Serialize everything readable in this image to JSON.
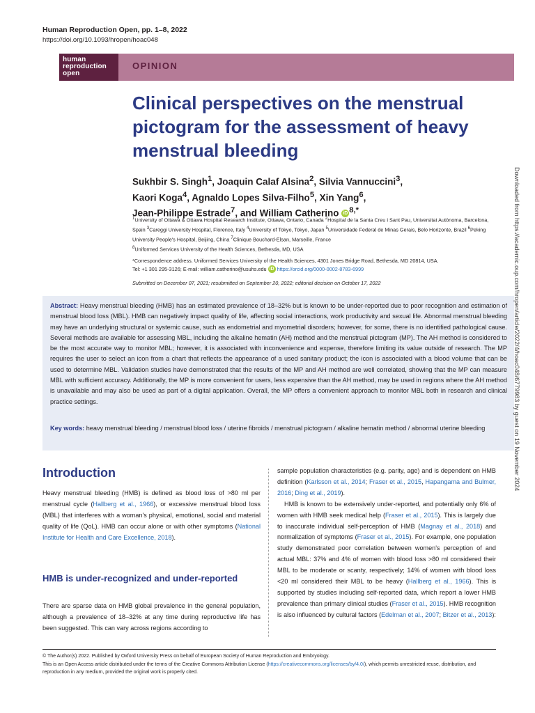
{
  "header": {
    "journal": "Human Reproduction Open, pp. 1–8, 2022",
    "doi": "https://doi.org/10.1093/hropen/hoac048"
  },
  "logo": {
    "line1": "human",
    "line2": "reproduction",
    "line3": "open"
  },
  "colors": {
    "accent": "#2c3a84",
    "banner": "#b57b97",
    "logo_bg": "#5e2140",
    "abstract_bg": "#e8ecf5",
    "orcid": "#a6ce39"
  },
  "banner_label": "OPINION",
  "title": "Clinical perspectives on the menstrual pictogram for the assessment of heavy menstrual bleeding",
  "authors": [
    {
      "name": "Sukhbir S. Singh",
      "sup": "1"
    },
    {
      "name": "Joaquin Calaf Alsina",
      "sup": "2"
    },
    {
      "name": "Silvia Vannuccini",
      "sup": "3"
    },
    {
      "name": "Kaori Koga",
      "sup": "4"
    },
    {
      "name": "Agnaldo Lopes Silva-Filho",
      "sup": "5"
    },
    {
      "name": "Xin Yang",
      "sup": "6"
    },
    {
      "name": "Jean-Philippe Estrade",
      "sup": "7"
    },
    {
      "name": "William Catherino",
      "sup": "8,*"
    }
  ],
  "affiliations": [
    {
      "sup": "1",
      "text": "University of Ottawa & Ottawa Hospital Research Institute, Ottawa, Ontario, Canada"
    },
    {
      "sup": "2",
      "text": "Hospital de la Santa Creu i Sant Pau, Universitat Autònoma, Barcelona, Spain"
    },
    {
      "sup": "3",
      "text": "Careggi University Hospital, Florence, Italy"
    },
    {
      "sup": "4",
      "text": "University of Tokyo, Tokyo, Japan"
    },
    {
      "sup": "5",
      "text": "Universidade Federal de Minas Gerais, Belo Horizonte, Brazil"
    },
    {
      "sup": "6",
      "text": "Peking University People's Hospital, Beijing, China"
    },
    {
      "sup": "7",
      "text": "Clinique Bouchard-Elsan, Marseille, France"
    },
    {
      "sup": "8",
      "text": "Uniformed Services University of the Health Sciences, Bethesda, MD, USA"
    }
  ],
  "correspondence": {
    "address": "*Correspondence address. Uniformed Services University of the Health Sciences, 4301 Jones Bridge Road, Bethesda, MD 20814, USA.",
    "contact": "Tel: +1 301 295-3126; E-mail: william.catherino@usuhs.edu",
    "orcid_url": "https://orcid.org/0000-0002-8783-6999"
  },
  "submitted": "Submitted on December 07, 2021; resubmitted on September 20, 2022; editorial decision on October 17, 2022",
  "abstract": {
    "label": "Abstract:",
    "text": "Heavy menstrual bleeding (HMB) has an estimated prevalence of 18–32% but is known to be under-reported due to poor recognition and estimation of menstrual blood loss (MBL). HMB can negatively impact quality of life, affecting social interactions, work productivity and sexual life. Abnormal menstrual bleeding may have an underlying structural or systemic cause, such as endometrial and myometrial disorders; however, for some, there is no identified pathological cause. Several methods are available for assessing MBL, including the alkaline hematin (AH) method and the menstrual pictogram (MP). The AH method is considered to be the most accurate way to monitor MBL; however, it is associated with inconvenience and expense, therefore limiting its value outside of research. The MP requires the user to select an icon from a chart that reflects the appearance of a used sanitary product; the icon is associated with a blood volume that can be used to determine MBL. Validation studies have demonstrated that the results of the MP and AH method are well correlated, showing that the MP can measure MBL with sufficient accuracy. Additionally, the MP is more convenient for users, less expensive than the AH method, may be used in regions where the AH method is unavailable and may also be used as part of a digital application. Overall, the MP offers a convenient approach to monitor MBL both in research and clinical practice settings."
  },
  "keywords": {
    "label": "Key words:",
    "text": "heavy menstrual bleeding / menstrual blood loss / uterine fibroids / menstrual pictogram / alkaline hematin method / abnormal uterine bleeding"
  },
  "intro": {
    "heading": "Introduction",
    "p1": {
      "t1": "Heavy menstrual bleeding (HMB) is defined as blood loss of >80 ml per menstrual cycle (",
      "c1": "Hallberg et al., 1966",
      "t2": "), or excessive menstrual blood loss (MBL) that interferes with a woman's physical, emotional, social and material quality of life (QoL). HMB can occur alone or with other symptoms (",
      "c2": "National Institute for Health and Care Excellence, 2018",
      "t3": ")."
    },
    "subheading": "HMB is under-recognized and under-reported",
    "p2": "There are sparse data on HMB global prevalence in the general population, although a prevalence of 18–32% at any time during reproductive life has been suggested. This can vary across regions according to",
    "right_p1": {
      "t1": "sample population characteristics (e.g. parity, age) and is dependent on HMB definition (",
      "c1": "Karlsson et al., 2014",
      "s1": "; ",
      "c2": "Fraser et al., 2015",
      "s2": ", ",
      "c3": "Hapangama and Bulmer, 2016",
      "s3": "; ",
      "c4": "Ding et al., 2019",
      "t2": ")."
    },
    "right_p2": {
      "t1": "HMB is known to be extensively under-reported, and potentially only 6% of women with HMB seek medical help (",
      "c1": "Fraser et al., 2015",
      "t2": "). This is largely due to inaccurate individual self-perception of HMB (",
      "c2": "Magnay et al., 2018",
      "t3": ") and normalization of symptoms (",
      "c3": "Fraser et al., 2015",
      "t4": "). For example, one population study demonstrated poor correlation between women's perception of and actual MBL: 37% and 4% of women with blood loss >80 ml considered their MBL to be moderate or scanty, respectively; 14% of women with blood loss <20 ml considered their MBL to be heavy (",
      "c4": "Hallberg et al., 1966",
      "t5": "). This is supported by studies including self-reported data, which report a lower HMB prevalence than primary clinical studies (",
      "c5": "Fraser et al., 2015",
      "t6": "). HMB recognition is also influenced by cultural factors (",
      "c6": "Edelman et al., 2007",
      "s6": "; ",
      "c7": "Bitzer et al., 2013",
      "t7": "):"
    }
  },
  "footer": {
    "line1": "© The Author(s) 2022. Published by Oxford University Press on behalf of European Society of Human Reproduction and Embryology.",
    "line2a": "This is an Open Access article distributed under the terms of the Creative Commons Attribution License (",
    "license_url": "https://creativecommons.org/licenses/by/4.0/",
    "line2b": "), which permits unrestricted reuse, distribution, and reproduction in any medium, provided the original work is properly cited."
  },
  "side_note": "Downloaded from https://academic.oup.com/hropen/article/2022/4/hoac048/6779983 by guest on 19 November 2024"
}
